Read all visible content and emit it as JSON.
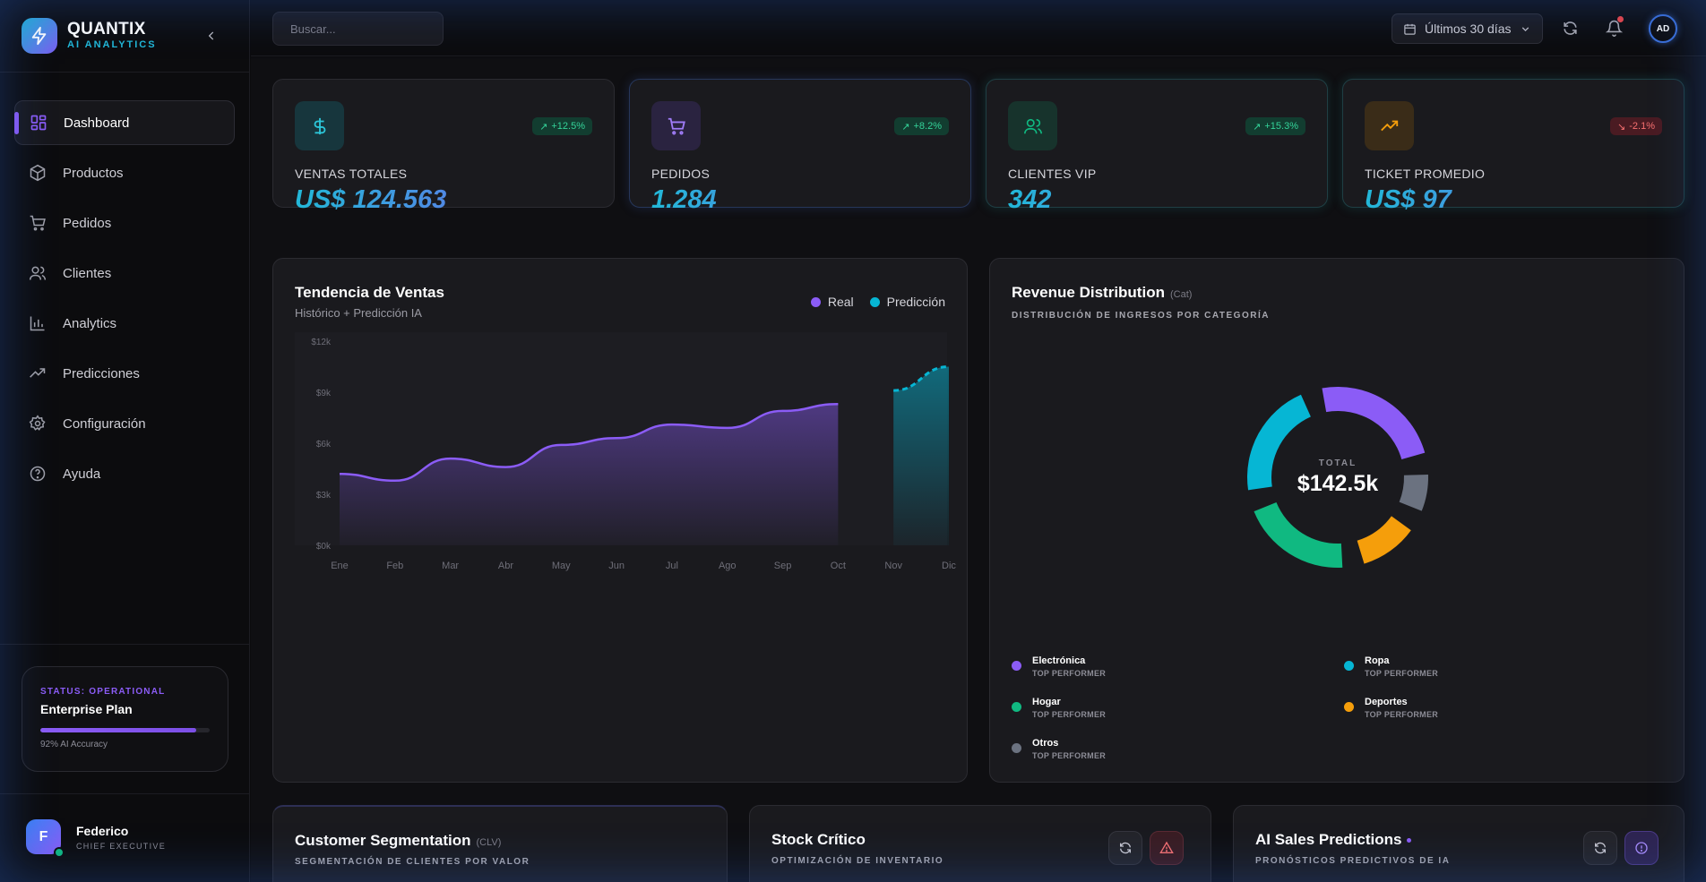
{
  "brand": {
    "name": "QUANTIX",
    "subtitle": "AI ANALYTICS"
  },
  "sidebar": {
    "items": [
      {
        "label": "Dashboard",
        "icon": "grid-icon"
      },
      {
        "label": "Productos",
        "icon": "box-icon"
      },
      {
        "label": "Pedidos",
        "icon": "cart-icon"
      },
      {
        "label": "Clientes",
        "icon": "users-icon"
      },
      {
        "label": "Analytics",
        "icon": "bar-chart-icon"
      },
      {
        "label": "Predicciones",
        "icon": "trend-icon"
      },
      {
        "label": "Configuración",
        "icon": "gear-icon"
      },
      {
        "label": "Ayuda",
        "icon": "help-icon"
      }
    ],
    "status": {
      "label": "STATUS: OPERATIONAL",
      "plan": "Enterprise Plan",
      "accuracy_text": "92% AI Accuracy",
      "accuracy": 0.92
    },
    "user": {
      "initial": "F",
      "name": "Federico",
      "role": "CHIEF EXECUTIVE"
    }
  },
  "topbar": {
    "search_placeholder": "Buscar...",
    "date_range": "Últimos 30 días",
    "avatar": "AD"
  },
  "kpis": [
    {
      "label": "VENTAS TOTALES",
      "value": "US$ 124.563",
      "change": "+12.5%",
      "direction": "up",
      "icon": "dollar-icon",
      "color": "#2cc5d8"
    },
    {
      "label": "PEDIDOS",
      "value": "1.284",
      "change": "+8.2%",
      "direction": "up",
      "icon": "cart-icon",
      "color": "#8b5cf6"
    },
    {
      "label": "CLIENTES VIP",
      "value": "342",
      "change": "+15.3%",
      "direction": "up",
      "icon": "users-icon",
      "color": "#10b981"
    },
    {
      "label": "TICKET PROMEDIO",
      "value": "US$ 97",
      "change": "-2.1%",
      "direction": "down",
      "icon": "trend-up-icon",
      "color": "#f59e0b"
    }
  ],
  "sales_trend": {
    "title": "Tendencia de Ventas",
    "subtitle": "Histórico + Predicción IA",
    "legend_real": "Real",
    "legend_pred": "Predicción"
  },
  "revenue": {
    "title": "Revenue Distribution",
    "tag": "(Cat)",
    "caps": "DISTRIBUCIÓN DE INGRESOS POR CATEGORÍA",
    "total_label": "TOTAL",
    "total_value": "$142.5k",
    "categories": [
      {
        "name": "Electrónica",
        "sub": "TOP PERFORMER",
        "color": "#8b5cf6"
      },
      {
        "name": "Ropa",
        "sub": "TOP PERFORMER",
        "color": "#06b6d4"
      },
      {
        "name": "Hogar",
        "sub": "TOP PERFORMER",
        "color": "#10b981"
      },
      {
        "name": "Deportes",
        "sub": "TOP PERFORMER",
        "color": "#f59e0b"
      },
      {
        "name": "Otros",
        "sub": "TOP PERFORMER",
        "color": "#6b7280"
      }
    ]
  },
  "bottom": {
    "segmentation": {
      "title": "Customer Segmentation",
      "tag": "(CLV)",
      "caps": "SEGMENTACIÓN DE CLIENTES POR VALOR"
    },
    "stock": {
      "title": "Stock Crítico",
      "caps": "OPTIMIZACIÓN DE INVENTARIO"
    },
    "predictions": {
      "title": "AI Sales Predictions",
      "caps": "PRONÓSTICOS PREDICTIVOS DE IA"
    }
  },
  "chart_data": [
    {
      "type": "area",
      "title": "Tendencia de Ventas",
      "subtitle": "Histórico + Predicción IA",
      "categories": [
        "Ene",
        "Feb",
        "Mar",
        "Abr",
        "May",
        "Jun",
        "Jul",
        "Ago",
        "Sep",
        "Oct",
        "Nov",
        "Dic"
      ],
      "y_ticks": [
        "$0k",
        "$3k",
        "$6k",
        "$9k",
        "$12k"
      ],
      "ylim": [
        0,
        12000
      ],
      "series": [
        {
          "name": "Real",
          "color": "#8b5cf6",
          "values": [
            4200,
            3800,
            5100,
            4600,
            5900,
            6300,
            7100,
            6900,
            7900,
            8300,
            null,
            null
          ]
        },
        {
          "name": "Predicción",
          "color": "#06b6d4",
          "values": [
            null,
            null,
            null,
            null,
            null,
            null,
            null,
            null,
            null,
            null,
            9100,
            10500
          ]
        }
      ],
      "legend": "top-right",
      "grid": false
    },
    {
      "type": "pie",
      "title": "Revenue Distribution",
      "categories": [
        "Electrónica",
        "Otros",
        "Deportes",
        "Hogar",
        "Ropa"
      ],
      "values": [
        25,
        7,
        11,
        21,
        22
      ],
      "colors": [
        "#8b5cf6",
        "#6b7280",
        "#f59e0b",
        "#10b981",
        "#06b6d4"
      ]
    }
  ]
}
